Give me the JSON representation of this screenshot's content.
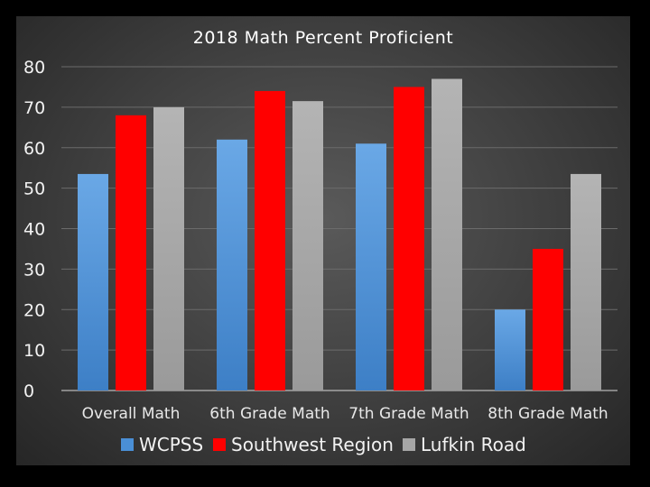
{
  "chart_data": {
    "type": "bar",
    "title": "2018 Math Percent Proficient",
    "categories": [
      "Overall Math",
      "6th Grade Math",
      "7th Grade Math",
      "8th Grade Math"
    ],
    "series": [
      {
        "name": "WCPSS",
        "values": [
          53.5,
          62,
          61,
          20
        ],
        "color": "#4a8fd6"
      },
      {
        "name": "Southwest Region",
        "values": [
          68,
          74,
          75,
          35
        ],
        "color": "#ff0000"
      },
      {
        "name": "Lufkin Road",
        "values": [
          70,
          71.5,
          77,
          53.5
        ],
        "color": "#a6a6a6"
      }
    ],
    "ylim": [
      0,
      80
    ],
    "yticks": [
      "0",
      "10",
      "20",
      "30",
      "40",
      "50",
      "60",
      "70",
      "80"
    ],
    "grid": true,
    "legend_position": "bottom"
  }
}
